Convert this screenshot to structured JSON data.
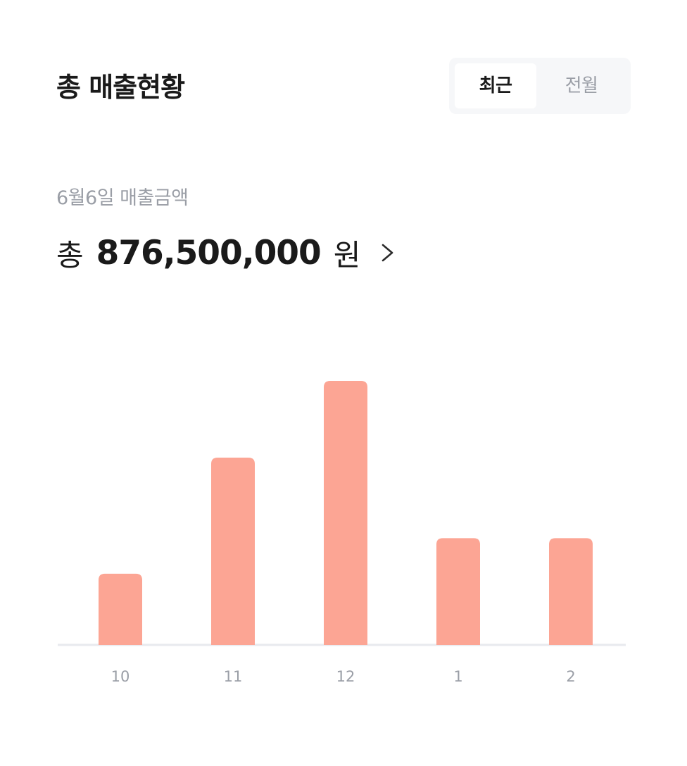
{
  "header": {
    "title": "총 매출현황"
  },
  "period_toggle": {
    "options": [
      "최근",
      "전월"
    ],
    "selected": "최근"
  },
  "summary": {
    "date_label": "6월6일 매출금액",
    "amount_prefix": "총",
    "amount_value": "876,500,000",
    "amount_unit": "원",
    "chevron_icon": "chevron-right-icon"
  },
  "colors": {
    "bar": "#fca594",
    "baseline": "#e8eaee",
    "tick_text": "#9a9ea6"
  },
  "chart_data": {
    "type": "bar",
    "categories": [
      "10",
      "11",
      "12",
      "1",
      "2"
    ],
    "values": [
      38,
      100,
      141,
      57,
      57
    ],
    "title": "",
    "xlabel": "",
    "ylabel": "",
    "ylim": [
      0,
      141
    ],
    "grid": false,
    "legend": "none"
  }
}
